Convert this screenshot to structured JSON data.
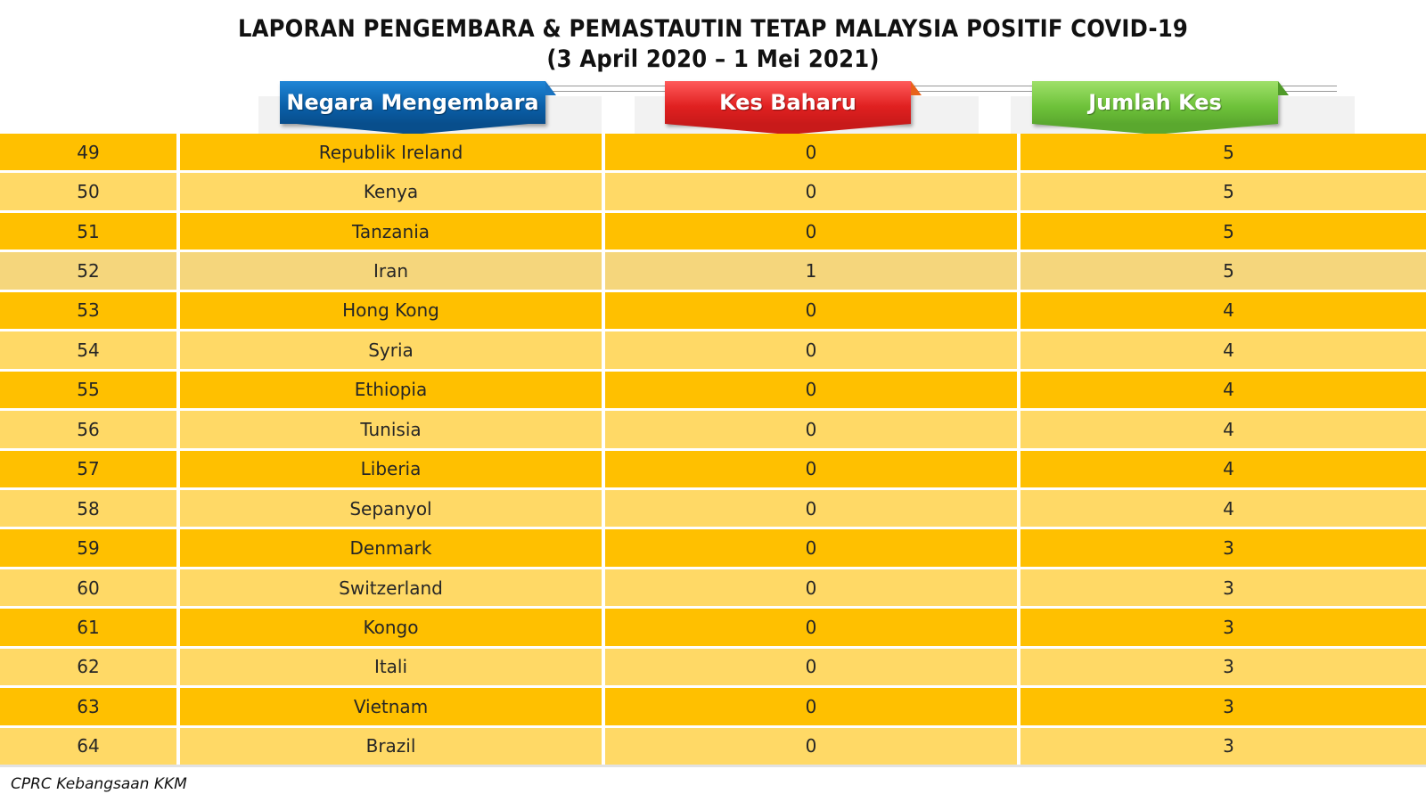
{
  "title": {
    "line1": "LAPORAN PENGEMBARA & PEMASTAUTIN TETAP MALAYSIA POSITIF COVID-19",
    "line2": "(3 April 2020 – 1 Mei 2021)"
  },
  "headers": {
    "country": "Negara Mengembara",
    "new_cases": "Kes Baharu",
    "total_cases": "Jumlah Kes"
  },
  "colors": {
    "row_dark": "#ffc000",
    "row_light": "#ffd966",
    "header_blue": "#0a5fa8",
    "header_red": "#e02020",
    "header_green": "#6ec23a"
  },
  "rows": [
    {
      "no": "49",
      "country": "Republik Ireland",
      "new": "0",
      "total": "5"
    },
    {
      "no": "50",
      "country": "Kenya",
      "new": "0",
      "total": "5"
    },
    {
      "no": "51",
      "country": "Tanzania",
      "new": "0",
      "total": "5"
    },
    {
      "no": "52",
      "country": "Iran",
      "new": "1",
      "total": "5"
    },
    {
      "no": "53",
      "country": "Hong Kong",
      "new": "0",
      "total": "4"
    },
    {
      "no": "54",
      "country": "Syria",
      "new": "0",
      "total": "4"
    },
    {
      "no": "55",
      "country": "Ethiopia",
      "new": "0",
      "total": "4"
    },
    {
      "no": "56",
      "country": "Tunisia",
      "new": "0",
      "total": "4"
    },
    {
      "no": "57",
      "country": "Liberia",
      "new": "0",
      "total": "4"
    },
    {
      "no": "58",
      "country": "Sepanyol",
      "new": "0",
      "total": "4"
    },
    {
      "no": "59",
      "country": "Denmark",
      "new": "0",
      "total": "3"
    },
    {
      "no": "60",
      "country": "Switzerland",
      "new": "0",
      "total": "3"
    },
    {
      "no": "61",
      "country": "Kongo",
      "new": "0",
      "total": "3"
    },
    {
      "no": "62",
      "country": "Itali",
      "new": "0",
      "total": "3"
    },
    {
      "no": "63",
      "country": "Vietnam",
      "new": "0",
      "total": "3"
    },
    {
      "no": "64",
      "country": "Brazil",
      "new": "0",
      "total": "3"
    }
  ],
  "source": "CPRC Kebangsaan KKM"
}
